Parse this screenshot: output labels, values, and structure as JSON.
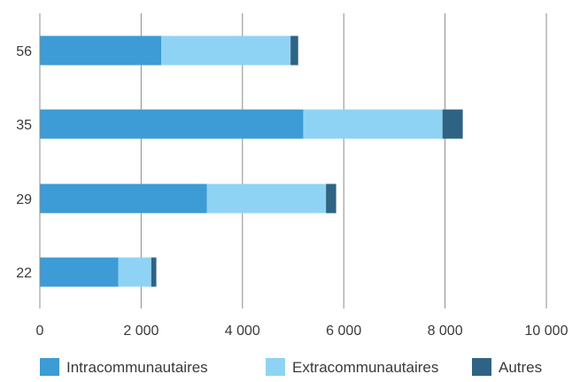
{
  "chart_data": {
    "type": "bar",
    "orientation": "horizontal",
    "stacked": true,
    "categories": [
      "56",
      "35",
      "29",
      "22"
    ],
    "series": [
      {
        "name": "Intracommunautaires",
        "values": [
          2400,
          5200,
          3300,
          1550
        ],
        "color": "#3d9bd6"
      },
      {
        "name": "Extracommunautaires",
        "values": [
          2550,
          2750,
          2350,
          650
        ],
        "color": "#8fd3f4"
      },
      {
        "name": "Autres",
        "values": [
          150,
          400,
          200,
          100
        ],
        "color": "#2e6384"
      }
    ],
    "xlim": [
      0,
      10000
    ],
    "xticks": [
      0,
      2000,
      4000,
      6000,
      8000,
      10000
    ],
    "xtick_labels": [
      "0",
      "2 000",
      "4 000",
      "6 000",
      "8 000",
      "10 000"
    ],
    "grid": "vertical",
    "legend_position": "bottom",
    "title": "",
    "xlabel": "",
    "ylabel": ""
  }
}
